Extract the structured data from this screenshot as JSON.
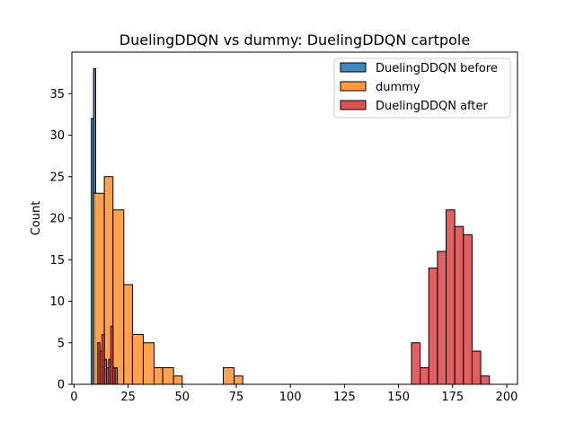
{
  "chart_data": {
    "type": "bar",
    "title": "DuelingDDQN vs dummy: DuelingDDQN cartpole",
    "xlabel": "",
    "ylabel": "Count",
    "xlim": [
      -1,
      205
    ],
    "ylim": [
      0,
      40
    ],
    "xticks": [
      0,
      25,
      50,
      75,
      100,
      125,
      150,
      175,
      200
    ],
    "yticks": [
      0,
      5,
      10,
      15,
      20,
      25,
      30,
      35
    ],
    "grid": false,
    "legend_position": "top-right",
    "series": [
      {
        "name": "DuelingDDQN before",
        "color": "#3b8bc2",
        "bins": [
          {
            "x0": 8,
            "x1": 9,
            "count": 32
          },
          {
            "x0": 9,
            "x1": 10,
            "count": 38
          },
          {
            "x0": 10,
            "x1": 11,
            "count": 5
          }
        ]
      },
      {
        "name": "dummy",
        "color": "#ff9a40",
        "bins": [
          {
            "x0": 9,
            "x1": 14,
            "count": 23
          },
          {
            "x0": 14,
            "x1": 18,
            "count": 25
          },
          {
            "x0": 18,
            "x1": 23,
            "count": 21
          },
          {
            "x0": 23,
            "x1": 27,
            "count": 12
          },
          {
            "x0": 27,
            "x1": 32,
            "count": 6
          },
          {
            "x0": 32,
            "x1": 37,
            "count": 5
          },
          {
            "x0": 37,
            "x1": 41,
            "count": 2
          },
          {
            "x0": 41,
            "x1": 46,
            "count": 2
          },
          {
            "x0": 46,
            "x1": 50,
            "count": 1
          },
          {
            "x0": 69,
            "x1": 74,
            "count": 2
          },
          {
            "x0": 74,
            "x1": 78,
            "count": 1
          }
        ]
      },
      {
        "name": "DuelingDDQN after",
        "color": "#e05252",
        "bins": [
          {
            "x0": 11,
            "x1": 12,
            "count": 5
          },
          {
            "x0": 12,
            "x1": 13,
            "count": 4
          },
          {
            "x0": 13,
            "x1": 14,
            "count": 6
          },
          {
            "x0": 14,
            "x1": 15,
            "count": 3
          },
          {
            "x0": 15,
            "x1": 16,
            "count": 2
          },
          {
            "x0": 16,
            "x1": 17,
            "count": 3
          },
          {
            "x0": 17,
            "x1": 18,
            "count": 7
          },
          {
            "x0": 18,
            "x1": 19,
            "count": 2
          },
          {
            "x0": 19,
            "x1": 20,
            "count": 2
          },
          {
            "x0": 156,
            "x1": 160,
            "count": 5
          },
          {
            "x0": 160,
            "x1": 164,
            "count": 2
          },
          {
            "x0": 164,
            "x1": 168,
            "count": 14
          },
          {
            "x0": 168,
            "x1": 172,
            "count": 16
          },
          {
            "x0": 172,
            "x1": 176,
            "count": 21
          },
          {
            "x0": 176,
            "x1": 180,
            "count": 19
          },
          {
            "x0": 180,
            "x1": 184,
            "count": 18
          },
          {
            "x0": 184,
            "x1": 188,
            "count": 4
          },
          {
            "x0": 188,
            "x1": 192,
            "count": 1
          }
        ]
      }
    ]
  }
}
